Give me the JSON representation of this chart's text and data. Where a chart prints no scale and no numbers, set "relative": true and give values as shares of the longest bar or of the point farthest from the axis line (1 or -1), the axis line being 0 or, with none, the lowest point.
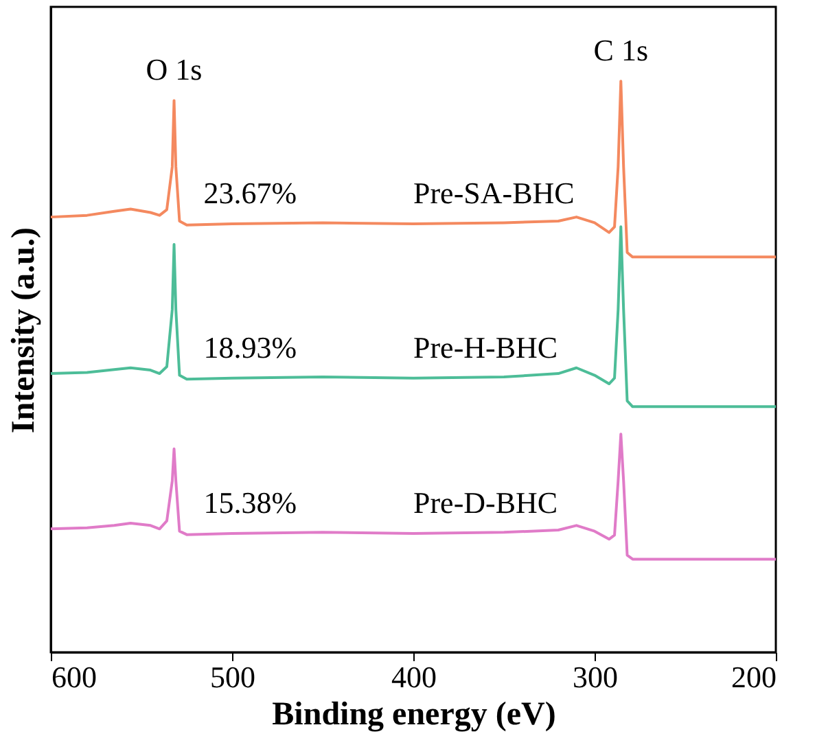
{
  "chart_data": {
    "type": "line",
    "relative": true,
    "xlabel": "Binding energy (eV)",
    "ylabel": "Intensity (a.u.)",
    "xlim": [
      600,
      200
    ],
    "xticks": [
      600,
      500,
      400,
      300,
      200
    ],
    "tick_labels": "x",
    "grid": false,
    "legend": false,
    "marker": "none",
    "line_style": "solid",
    "x": [
      600,
      580,
      565,
      556,
      545,
      540,
      536,
      533,
      532,
      531,
      529,
      525,
      500,
      450,
      400,
      350,
      320,
      310,
      300,
      292,
      289,
      287,
      285.5,
      284,
      282,
      279,
      270,
      250,
      200
    ],
    "series": [
      {
        "name": "Pre-SA-BHC",
        "color": "#f4895f",
        "values": [
          0.762,
          0.765,
          0.772,
          0.776,
          0.77,
          0.765,
          0.775,
          0.85,
          0.966,
          0.85,
          0.755,
          0.748,
          0.75,
          0.752,
          0.75,
          0.752,
          0.755,
          0.762,
          0.752,
          0.735,
          0.745,
          0.85,
          1.0,
          0.85,
          0.7,
          0.692,
          0.692,
          0.692,
          0.692
        ]
      },
      {
        "name": "Pre-H-BHC",
        "color": "#4dbd98",
        "values": [
          0.488,
          0.49,
          0.495,
          0.498,
          0.494,
          0.488,
          0.5,
          0.6,
          0.714,
          0.6,
          0.485,
          0.478,
          0.48,
          0.482,
          0.48,
          0.482,
          0.488,
          0.498,
          0.485,
          0.47,
          0.48,
          0.6,
          0.745,
          0.6,
          0.44,
          0.43,
          0.43,
          0.43,
          0.43
        ]
      },
      {
        "name": "Pre-D-BHC",
        "color": "#e07bc8",
        "values": [
          0.216,
          0.218,
          0.222,
          0.226,
          0.222,
          0.216,
          0.23,
          0.3,
          0.356,
          0.3,
          0.212,
          0.206,
          0.208,
          0.21,
          0.208,
          0.21,
          0.214,
          0.222,
          0.212,
          0.198,
          0.205,
          0.3,
          0.382,
          0.3,
          0.17,
          0.163,
          0.163,
          0.163,
          0.163
        ]
      }
    ],
    "annotations": [
      {
        "text": "O 1s",
        "x": 532,
        "y": 0.966
      },
      {
        "text": "C 1s",
        "x": 285.5,
        "y": 1.0
      },
      {
        "text": "23.67%",
        "x": 490,
        "y": 0.75
      },
      {
        "text": "18.93%",
        "x": 490,
        "y": 0.48
      },
      {
        "text": "15.38%",
        "x": 490,
        "y": 0.208
      }
    ]
  }
}
